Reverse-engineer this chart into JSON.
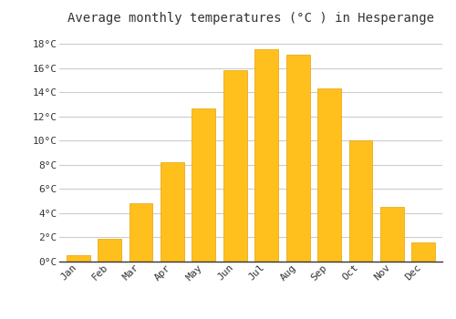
{
  "title": "Average monthly temperatures (°C ) in Hesperange",
  "months": [
    "Jan",
    "Feb",
    "Mar",
    "Apr",
    "May",
    "Jun",
    "Jul",
    "Aug",
    "Sep",
    "Oct",
    "Nov",
    "Dec"
  ],
  "values": [
    0.5,
    1.9,
    4.8,
    8.2,
    12.7,
    15.8,
    17.6,
    17.1,
    14.3,
    10.0,
    4.5,
    1.6
  ],
  "bar_color": "#FFC01E",
  "bar_edge_color": "#E8A000",
  "background_color": "#FFFFFF",
  "grid_color": "#CCCCCC",
  "ylim": [
    0,
    19
  ],
  "yticks": [
    0,
    2,
    4,
    6,
    8,
    10,
    12,
    14,
    16,
    18
  ],
  "ytick_labels": [
    "0°C",
    "2°C",
    "4°C",
    "6°C",
    "8°C",
    "10°C",
    "12°C",
    "14°C",
    "16°C",
    "18°C"
  ],
  "title_fontsize": 10,
  "tick_fontsize": 8,
  "font_family": "monospace",
  "bar_width": 0.75
}
